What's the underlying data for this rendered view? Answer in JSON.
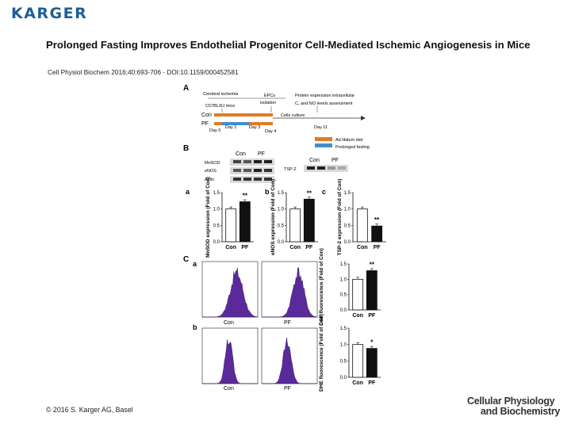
{
  "publisher": {
    "logo_text": "KARGER"
  },
  "slide": {
    "title": "Prolonged Fasting Improves Endothelial Progenitor Cell-Mediated Ischemic Angiogenesis in Mice",
    "citation": "Cell Physiol Biochem 2016;40:693-706 - DOI:10.1159/000452581",
    "copyright": "© 2016 S. Karger AG, Basel",
    "journal_line1": "Cellular Physiology",
    "journal_line2": "and Biochemistry"
  },
  "figure": {
    "panel_labels": {
      "A": "A",
      "B": "B",
      "C": "C"
    },
    "timeline": {
      "label_hindlimb": "Cerebral ischemia",
      "label_mice": "C57BL/6J mice",
      "label_epcs": "EPCs",
      "label_isolation": "isolation",
      "label_protein": "Protein expression intracellular",
      "label_levels": "C, and NO levels assessment",
      "label_culture": "Cells culture",
      "row_con": "Con",
      "row_pf": "PF",
      "day0": "Day 0",
      "day1": "Day 1",
      "day3": "Day 3",
      "day4": "Day 4",
      "day11": "Day 11"
    },
    "legend": {
      "colors": {
        "ad_libitum": "#e07b24",
        "fasting": "#3f8fd0"
      },
      "ad_libitum": "Ad libitum diet",
      "fasting": "Prolonged fasting"
    },
    "western": {
      "col_con": "Con",
      "col_pf": "PF",
      "rows": [
        "MnSOD",
        "eNOS",
        "Actin"
      ],
      "tsp2_label": "TSP-2",
      "tsp2_con": "Con",
      "tsp2_pf": "PF"
    },
    "panel_B_sublabels": [
      "a",
      "b",
      "c"
    ],
    "panel_C_sublabels": [
      "a",
      "b"
    ],
    "bar_charts": [
      {
        "sublabel": "a",
        "ylabel": "MnSOD expression (Fold of Con)",
        "categories": [
          "Con",
          "PF"
        ],
        "values": [
          1.0,
          1.22
        ],
        "ticks": [
          "0.0",
          "0.5",
          "1.0",
          "1.5"
        ],
        "ylim": [
          0,
          1.5
        ],
        "sig": "**"
      },
      {
        "sublabel": "b",
        "ylabel": "eNOS expression (Fold of Con)",
        "categories": [
          "Con",
          "PF"
        ],
        "values": [
          1.0,
          1.3
        ],
        "ticks": [
          "0.0",
          "0.5",
          "1.0",
          "1.5"
        ],
        "ylim": [
          0,
          1.5
        ],
        "sig": "**"
      },
      {
        "sublabel": "c",
        "ylabel": "TSP-2 expression (Fold of Con)",
        "categories": [
          "Con",
          "PF"
        ],
        "values": [
          1.0,
          0.48
        ],
        "ticks": [
          "0.0",
          "0.5",
          "1.0",
          "1.5"
        ],
        "ylim": [
          0,
          1.5
        ],
        "sig": "**"
      },
      {
        "sublabel": "Ca",
        "ylabel": "DAF fluorescence (Fold of Con)",
        "categories": [
          "Con",
          "PF"
        ],
        "values": [
          1.0,
          1.28
        ],
        "ticks": [
          "0.0",
          "0.5",
          "1.0",
          "1.5"
        ],
        "ylim": [
          0,
          1.5
        ],
        "sig": "**"
      },
      {
        "sublabel": "Cb",
        "ylabel": "DHE fluorescence (Fold of Con)",
        "categories": [
          "Con",
          "PF"
        ],
        "values": [
          1.0,
          0.88
        ],
        "ticks": [
          "0.0",
          "0.5",
          "1.0",
          "1.5"
        ],
        "ylim": [
          0,
          1.5
        ],
        "sig": "*"
      }
    ],
    "histograms": {
      "con_label": "Con",
      "pf_label": "PF",
      "fill": "#5a2a9a"
    }
  }
}
